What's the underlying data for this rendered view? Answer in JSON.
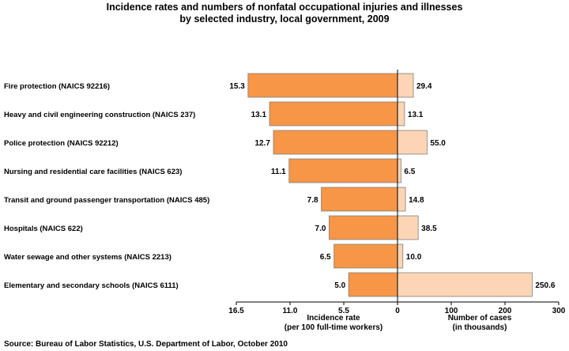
{
  "title_line1": "Incidence rates and numbers of nonfatal occupational injuries and illnesses",
  "title_line2": "by selected industry, local government, 2009",
  "source": "Source:  Bureau of Labor Statistics, U.S. Department of Labor, October 2010",
  "colors": {
    "rate_fill": "#F79646",
    "cases_fill": "#FCD5B5",
    "bar_stroke": "#7F7F7F",
    "axis": "#000000"
  },
  "chart_data": {
    "type": "bar",
    "categories": [
      "Fire protection (NAICS 92216)",
      "Heavy and civil engineering construction (NAICS 237)",
      "Police protection (NAICS 92212)",
      "Nursing and residential care facilities (NAICS 623)",
      "Transit and ground passenger transportation (NAICS 485)",
      "Hospitals (NAICS 622)",
      "Water sewage and other systems (NAICS 2213)",
      "Elementary and secondary schools (NAICS 6111)"
    ],
    "series": [
      {
        "values": [
          15.3,
          13.1,
          12.7,
          11.1,
          7.8,
          7.0,
          6.5,
          5.0
        ]
      },
      {
        "values": [
          29.4,
          13.1,
          55.0,
          6.5,
          14.8,
          38.5,
          10.0,
          250.6
        ]
      }
    ],
    "value_labels_rate": [
      "15.3",
      "13.1",
      "12.7",
      "11.1",
      "7.8",
      "7.0",
      "6.5",
      "5.0"
    ],
    "value_labels_cases": [
      "29.4",
      "13.1",
      "55.0",
      "6.5",
      "14.8",
      "38.5",
      "10.0",
      "250.6"
    ],
    "left_axis": {
      "label_line1": "Incidence rate",
      "label_line2": "(per 100 full-time workers)",
      "ticks": [
        16.5,
        11.0,
        5.5,
        0
      ],
      "tick_labels": [
        "16.5",
        "11.0",
        "5.5",
        "0"
      ],
      "xlim": [
        16.5,
        0
      ]
    },
    "right_axis": {
      "label_line1": "Number of cases",
      "label_line2": "(in thousands)",
      "ticks": [
        100,
        200,
        300
      ],
      "tick_labels": [
        "100",
        "200",
        "300"
      ],
      "xlim": [
        0,
        300
      ]
    },
    "grid": false,
    "legend": "none"
  }
}
